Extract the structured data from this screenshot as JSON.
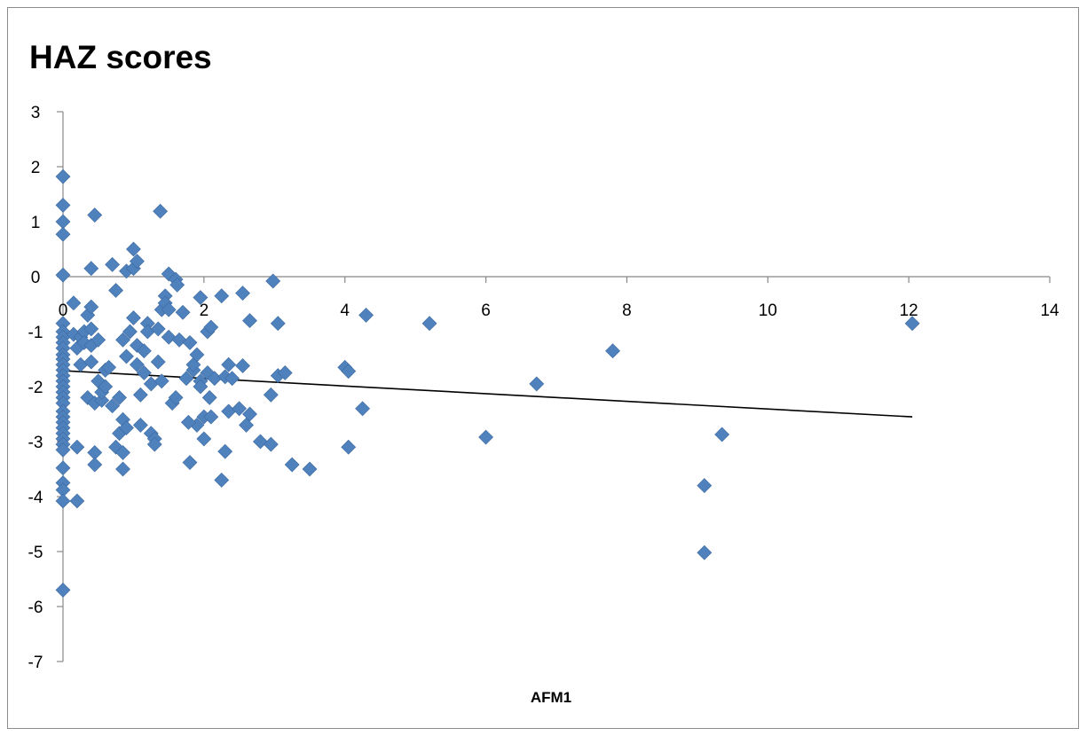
{
  "chart_data": {
    "type": "scatter",
    "title": "HAZ scores",
    "xlabel": "AFM1",
    "ylabel": "",
    "xlim": [
      0,
      14
    ],
    "ylim": [
      -7,
      3
    ],
    "x_ticks": [
      0,
      2,
      4,
      6,
      8,
      10,
      12,
      14
    ],
    "y_ticks": [
      3,
      2,
      1,
      0,
      -1,
      -2,
      -3,
      -4,
      -5,
      -6,
      -7
    ],
    "grid": false,
    "legend": "none",
    "marker_color": "#4f81bd",
    "trendline": {
      "type": "linear",
      "x": [
        0,
        12.05
      ],
      "y": [
        -1.71,
        -2.55
      ],
      "color": "#000000"
    },
    "series": [
      {
        "points": [
          [
            0,
            1.82
          ],
          [
            0,
            1.3
          ],
          [
            0,
            1.0
          ],
          [
            0,
            0.77
          ],
          [
            0,
            0.03
          ],
          [
            0,
            -0.85
          ],
          [
            0,
            -1.0
          ],
          [
            0,
            -1.1
          ],
          [
            0,
            -1.2
          ],
          [
            0,
            -1.3
          ],
          [
            0,
            -1.42
          ],
          [
            0,
            -1.5
          ],
          [
            0,
            -1.6
          ],
          [
            0,
            -1.7
          ],
          [
            0,
            -1.8
          ],
          [
            0,
            -1.9
          ],
          [
            0,
            -2.0
          ],
          [
            0,
            -2.1
          ],
          [
            0,
            -2.2
          ],
          [
            0,
            -2.3
          ],
          [
            0,
            -2.45
          ],
          [
            0,
            -2.55
          ],
          [
            0,
            -2.65
          ],
          [
            0,
            -2.75
          ],
          [
            0,
            -2.85
          ],
          [
            0,
            -2.95
          ],
          [
            0,
            -3.05
          ],
          [
            0,
            -3.15
          ],
          [
            0,
            -3.48
          ],
          [
            0,
            -3.75
          ],
          [
            0,
            -3.88
          ],
          [
            0,
            -4.08
          ],
          [
            0,
            -5.7
          ],
          [
            0.15,
            -0.48
          ],
          [
            0.15,
            -1.05
          ],
          [
            0.2,
            -1.3
          ],
          [
            0.25,
            -1.1
          ],
          [
            0.25,
            -1.6
          ],
          [
            0.2,
            -3.1
          ],
          [
            0.2,
            -4.08
          ],
          [
            0.3,
            -1.0
          ],
          [
            0.3,
            -1.2
          ],
          [
            0.35,
            -0.7
          ],
          [
            0.35,
            -2.2
          ],
          [
            0.4,
            -0.95
          ],
          [
            0.4,
            -1.25
          ],
          [
            0.4,
            -1.55
          ],
          [
            0.45,
            -2.3
          ],
          [
            0.45,
            -3.2
          ],
          [
            0.45,
            -3.42
          ],
          [
            0.5,
            -1.15
          ],
          [
            0.5,
            -1.9
          ],
          [
            0.55,
            -2.25
          ],
          [
            0.55,
            -2.1
          ],
          [
            0.6,
            -1.7
          ],
          [
            0.6,
            -2.0
          ],
          [
            0.4,
            0.15
          ],
          [
            0.4,
            -0.55
          ],
          [
            0.45,
            1.12
          ],
          [
            0.65,
            -1.65
          ],
          [
            0.7,
            -2.35
          ],
          [
            0.75,
            -3.1
          ],
          [
            0.8,
            -2.85
          ],
          [
            0.85,
            -2.6
          ],
          [
            0.85,
            -3.2
          ],
          [
            0.85,
            -3.5
          ],
          [
            0.9,
            -2.75
          ],
          [
            0.7,
            0.22
          ],
          [
            0.75,
            -0.25
          ],
          [
            0.8,
            -2.2
          ],
          [
            0.85,
            -1.15
          ],
          [
            0.9,
            0.1
          ],
          [
            0.9,
            -1.45
          ],
          [
            0.95,
            -1.0
          ],
          [
            1.0,
            0.15
          ],
          [
            1.0,
            -0.75
          ],
          [
            1.05,
            -1.6
          ],
          [
            1.05,
            -1.25
          ],
          [
            1.1,
            -2.15
          ],
          [
            1.1,
            -2.7
          ],
          [
            1.15,
            -1.35
          ],
          [
            1.15,
            -1.75
          ],
          [
            1.2,
            -0.85
          ],
          [
            1.2,
            -1.0
          ],
          [
            1.25,
            -1.95
          ],
          [
            1.25,
            -2.85
          ],
          [
            1.3,
            -2.95
          ],
          [
            1.3,
            -3.05
          ],
          [
            1.35,
            -1.55
          ],
          [
            1.35,
            -0.95
          ],
          [
            1.4,
            -0.6
          ],
          [
            1.4,
            -1.9
          ],
          [
            1.45,
            -0.35
          ],
          [
            1.45,
            -0.48
          ],
          [
            1.5,
            -0.6
          ],
          [
            1.5,
            -1.1
          ],
          [
            1.55,
            -2.3
          ],
          [
            1.6,
            -2.2
          ],
          [
            1.65,
            -1.15
          ],
          [
            1.7,
            -0.65
          ],
          [
            1.8,
            -1.2
          ],
          [
            1.85,
            -1.7
          ],
          [
            1.9,
            -2.7
          ],
          [
            1.95,
            -1.9
          ],
          [
            2.0,
            -2.95
          ],
          [
            2.0,
            -2.55
          ],
          [
            2.05,
            -1.0
          ],
          [
            2.05,
            -1.75
          ],
          [
            2.1,
            -2.55
          ],
          [
            2.15,
            -1.85
          ],
          [
            1.0,
            0.5
          ],
          [
            1.05,
            0.28
          ],
          [
            1.38,
            1.19
          ],
          [
            1.5,
            0.05
          ],
          [
            1.6,
            -0.05
          ],
          [
            1.62,
            -0.15
          ],
          [
            1.95,
            -0.38
          ],
          [
            2.25,
            -0.35
          ],
          [
            2.55,
            -0.3
          ],
          [
            2.65,
            -0.8
          ],
          [
            2.98,
            -0.08
          ],
          [
            3.05,
            -0.85
          ],
          [
            4.3,
            -0.7
          ],
          [
            1.75,
            -1.85
          ],
          [
            1.85,
            -1.6
          ],
          [
            1.9,
            -1.42
          ],
          [
            1.95,
            -2.0
          ],
          [
            2.08,
            -2.2
          ],
          [
            2.1,
            -0.92
          ],
          [
            2.3,
            -1.82
          ],
          [
            2.35,
            -1.6
          ],
          [
            2.4,
            -1.85
          ],
          [
            2.55,
            -1.62
          ],
          [
            2.95,
            -2.15
          ],
          [
            3.05,
            -1.8
          ],
          [
            3.15,
            -1.75
          ],
          [
            4.0,
            -1.65
          ],
          [
            4.05,
            -1.72
          ],
          [
            1.78,
            -2.65
          ],
          [
            1.8,
            -3.38
          ],
          [
            2.25,
            -3.7
          ],
          [
            2.3,
            -3.18
          ],
          [
            2.35,
            -2.45
          ],
          [
            2.5,
            -2.4
          ],
          [
            2.6,
            -2.7
          ],
          [
            2.65,
            -2.5
          ],
          [
            2.8,
            -3.0
          ],
          [
            2.95,
            -3.05
          ],
          [
            3.25,
            -3.42
          ],
          [
            3.5,
            -3.5
          ],
          [
            4.05,
            -3.1
          ],
          [
            4.25,
            -2.4
          ],
          [
            5.2,
            -0.85
          ],
          [
            6.0,
            -2.92
          ],
          [
            6.72,
            -1.95
          ],
          [
            7.8,
            -1.35
          ],
          [
            9.1,
            -3.8
          ],
          [
            9.1,
            -5.02
          ],
          [
            9.35,
            -2.87
          ],
          [
            12.05,
            -0.85
          ]
        ]
      }
    ]
  }
}
